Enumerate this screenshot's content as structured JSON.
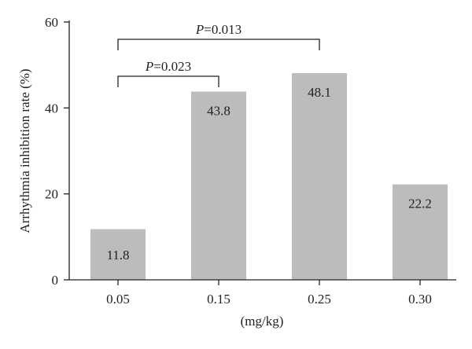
{
  "chart_data": {
    "type": "bar",
    "categories": [
      "0.05",
      "0.15",
      "0.25",
      "0.30"
    ],
    "values": [
      11.8,
      43.8,
      48.1,
      22.2
    ],
    "value_labels": [
      "11.8",
      "43.8",
      "48.1",
      "22.2"
    ],
    "xlabel": "(mg/kg)",
    "ylabel": "Arrhythmia inhibition rate (%)",
    "ylim": [
      0,
      60
    ],
    "yticks": [
      "0",
      "20",
      "40",
      "60"
    ],
    "grid": false,
    "bar_color": "#bcbcbc",
    "significance": [
      {
        "from": 0,
        "to": 1,
        "p_symbol": "P",
        "p_rest": "=0.023"
      },
      {
        "from": 0,
        "to": 2,
        "p_symbol": "P",
        "p_rest": "=0.013"
      }
    ]
  }
}
